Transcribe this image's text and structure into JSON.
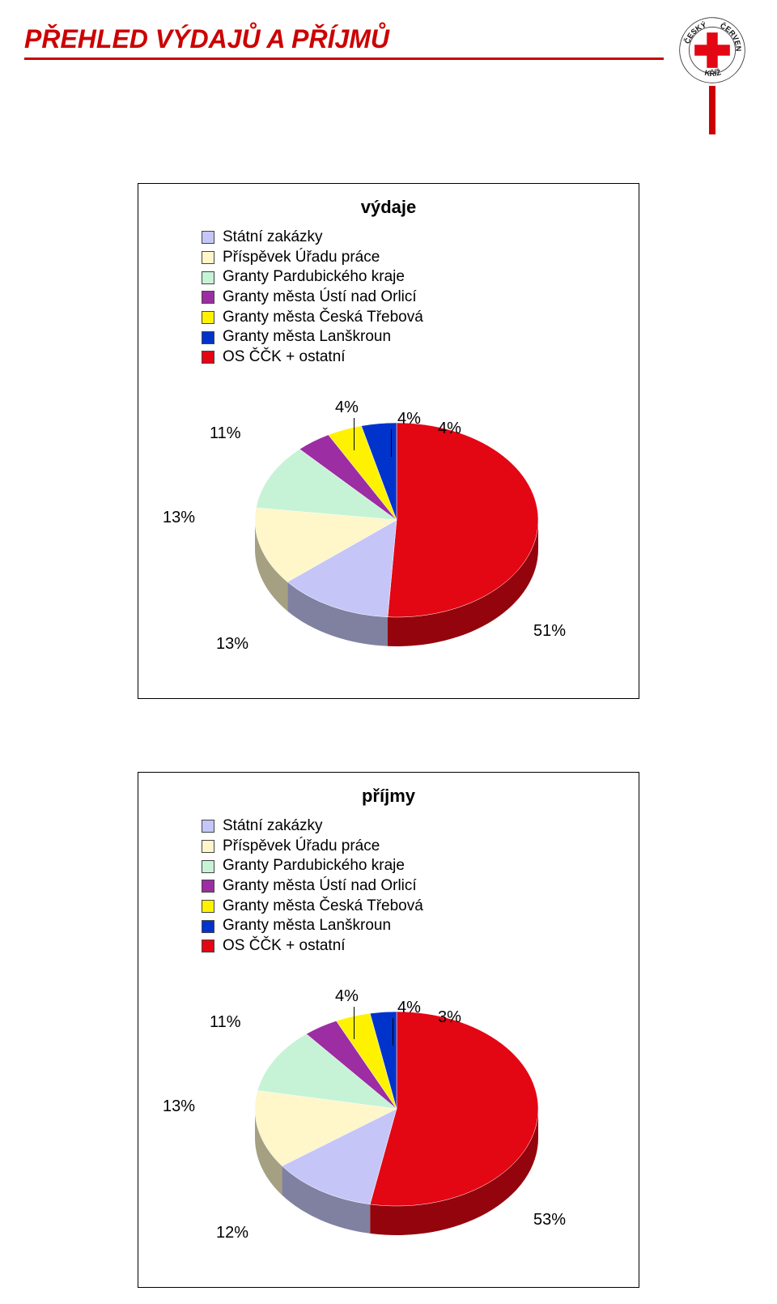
{
  "page_title": "PŘEHLED VÝDAJŮ A PŘÍJMŮ",
  "logo": {
    "outer_ring_text_top": "ČESKÝ",
    "outer_ring_text_right": "ČERVENÝ",
    "outer_ring_text_bottom": "",
    "outer_ring_text_left": "KŘÍŽ",
    "cross_color": "#e30613",
    "ring_bg": "#ffffff",
    "ring_border": "#333333"
  },
  "legend_colors": {
    "statni_zakazky": "#c5c6f7",
    "prispevek_uradu": "#fff6c9",
    "granty_pardubickeho": "#c6f3d6",
    "granty_usti": "#9d2da3",
    "granty_ceska_trebova": "#fff200",
    "granty_lanskroun": "#0033cc",
    "os_cck_ostatni": "#e30613"
  },
  "legend_labels": {
    "statni_zakazky": "Státní zakázky",
    "prispevek_uradu": "Příspěvek Úřadu práce",
    "granty_pardubickeho": "Granty Pardubického kraje",
    "granty_usti": "Granty města Ústí nad Orlicí",
    "granty_ceska_trebova": "Granty města Česká Třebová",
    "granty_lanskroun": "Granty města Lanškroun",
    "os_cck_ostatni": "OS ČČK + ostatní"
  },
  "chart1": {
    "type": "pie",
    "title": "výdaje",
    "background_color": "#ffffff",
    "slices": [
      {
        "key": "os_cck_ostatni",
        "value": 51,
        "label": "51%"
      },
      {
        "key": "statni_zakazky",
        "value": 13,
        "label": "13%"
      },
      {
        "key": "prispevek_uradu",
        "value": 13,
        "label": "13%"
      },
      {
        "key": "granty_pardubickeho",
        "value": 11,
        "label": "11%"
      },
      {
        "key": "granty_usti",
        "value": 4,
        "label": "4%"
      },
      {
        "key": "granty_ceska_trebova",
        "value": 4,
        "label": "4%"
      },
      {
        "key": "granty_lanskroun",
        "value": 4,
        "label": "4%"
      }
    ],
    "label_fontsize": 20,
    "title_fontsize": 22
  },
  "chart2": {
    "type": "pie",
    "title": "příjmy",
    "background_color": "#ffffff",
    "slices": [
      {
        "key": "os_cck_ostatni",
        "value": 53,
        "label": "53%"
      },
      {
        "key": "statni_zakazky",
        "value": 12,
        "label": "12%"
      },
      {
        "key": "prispevek_uradu",
        "value": 13,
        "label": "13%"
      },
      {
        "key": "granty_pardubickeho",
        "value": 11,
        "label": "11%"
      },
      {
        "key": "granty_usti",
        "value": 4,
        "label": "4%"
      },
      {
        "key": "granty_ceska_trebova",
        "value": 4,
        "label": "4%"
      },
      {
        "key": "granty_lanskroun",
        "value": 3,
        "label": "3%"
      }
    ],
    "label_fontsize": 20,
    "title_fontsize": 22
  }
}
